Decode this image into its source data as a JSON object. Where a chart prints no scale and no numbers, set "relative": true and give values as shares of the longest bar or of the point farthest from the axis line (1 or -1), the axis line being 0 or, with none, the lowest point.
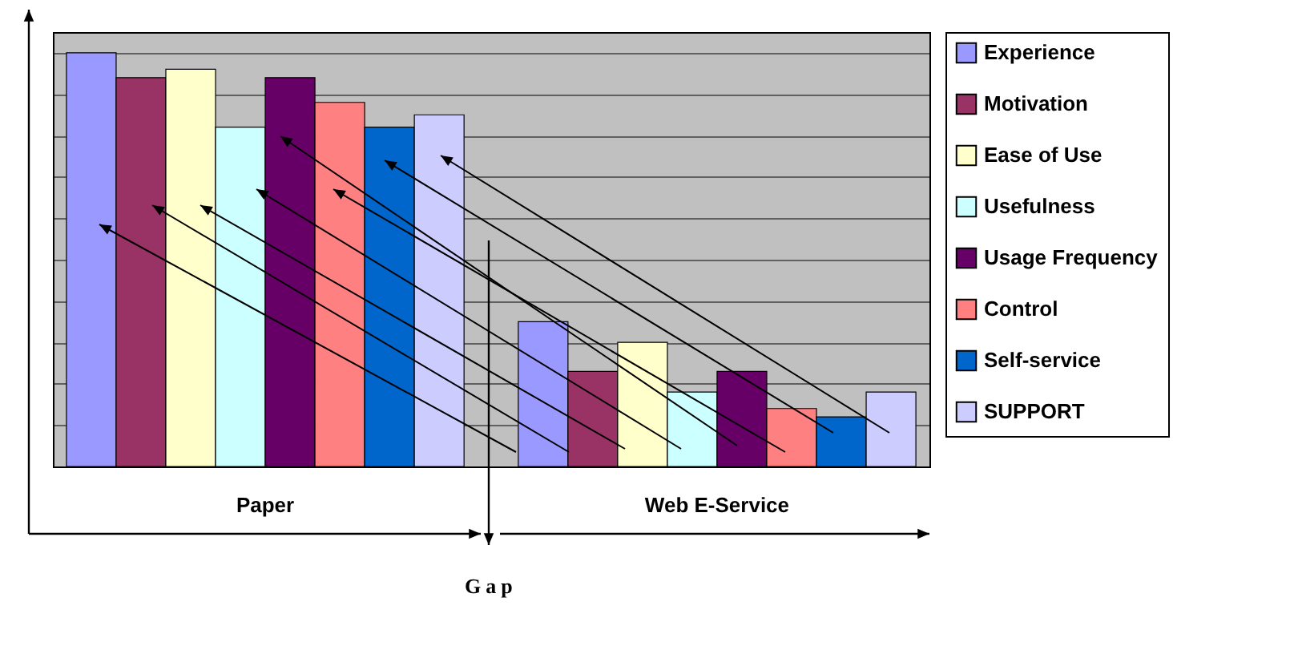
{
  "chart_data": {
    "type": "bar",
    "relative": true,
    "grid": "y",
    "legend": "right",
    "categories": [
      "Paper",
      "Web E-Service"
    ],
    "annotations": [
      "Gap"
    ],
    "series": [
      {
        "name": "Experience",
        "color": "#9999ff",
        "values": [
          1,
          0.35
        ]
      },
      {
        "name": "Motivation",
        "color": "#993366",
        "values": [
          0.94,
          0.23
        ]
      },
      {
        "name": "Ease of Use",
        "color": "#ffffcc",
        "values": [
          0.96,
          0.3
        ]
      },
      {
        "name": "Usefulness",
        "color": "#ccffff",
        "values": [
          0.82,
          0.18
        ]
      },
      {
        "name": "Usage Frequency",
        "color": "#660066",
        "values": [
          0.94,
          0.23
        ]
      },
      {
        "name": "Control",
        "color": "#ff8080",
        "values": [
          0.88,
          0.14
        ]
      },
      {
        "name": "Self-service",
        "color": "#0066cc",
        "values": [
          0.82,
          0.12
        ]
      },
      {
        "name": "SUPPORT",
        "color": "#ccccff",
        "values": [
          0.85,
          0.18
        ]
      }
    ]
  }
}
